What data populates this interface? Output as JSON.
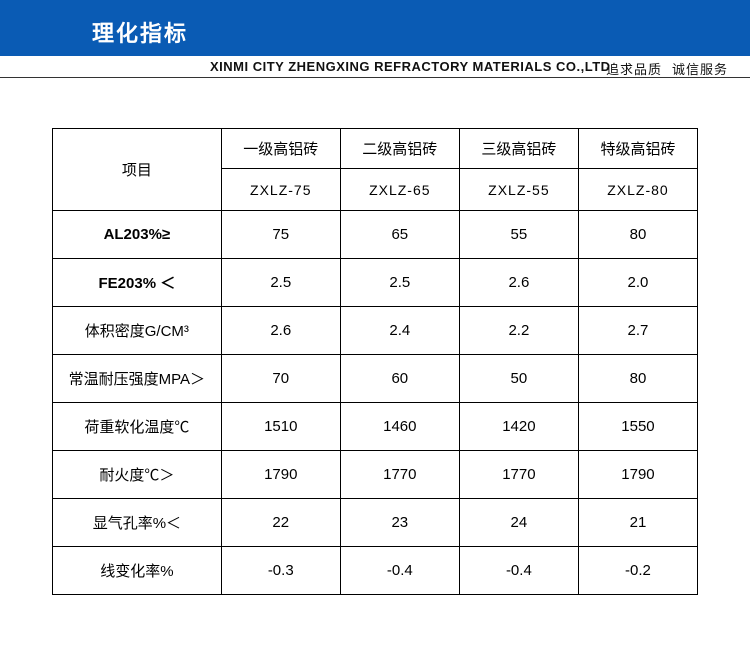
{
  "header": {
    "title": "理化指标",
    "company": "XINMI CITY ZHENGXING REFRACTORY MATERIALS CO.,LTD",
    "slogan1": "追求品质",
    "slogan2": "诚信服务"
  },
  "table": {
    "prop_header": "项目",
    "grades": [
      {
        "label": "一级高铝砖",
        "code": "ZXLZ-75"
      },
      {
        "label": "二级高铝砖",
        "code": "ZXLZ-65"
      },
      {
        "label": "三级高铝砖",
        "code": "ZXLZ-55"
      },
      {
        "label": "特级高铝砖",
        "code": "ZXLZ-80"
      }
    ],
    "rows": [
      {
        "prop": "AL203%≥",
        "bold": true,
        "values": [
          "75",
          "65",
          "55",
          "80"
        ]
      },
      {
        "prop": "FE203% ＜",
        "bold": true,
        "values": [
          "2.5",
          "2.5",
          "2.6",
          "2.0"
        ]
      },
      {
        "prop": "体积密度G/CM³",
        "bold": false,
        "values": [
          "2.6",
          "2.4",
          "2.2",
          "2.7"
        ]
      },
      {
        "prop": "常温耐压强度MPA＞",
        "bold": false,
        "values": [
          "70",
          "60",
          "50",
          "80"
        ]
      },
      {
        "prop": "荷重软化温度℃",
        "bold": false,
        "values": [
          "1510",
          "1460",
          "1420",
          "1550"
        ]
      },
      {
        "prop": "耐火度℃＞",
        "bold": false,
        "values": [
          "1790",
          "1770",
          "1770",
          "1790"
        ]
      },
      {
        "prop": "显气孔率%＜",
        "bold": false,
        "values": [
          "22",
          "23",
          "24",
          "21"
        ]
      },
      {
        "prop": "线变化率%",
        "bold": false,
        "values": [
          "-0.3",
          "-0.4",
          "-0.4",
          "-0.2"
        ]
      }
    ]
  },
  "colors": {
    "header_bg": "#0a5bb4",
    "text": "#000000",
    "border": "#000000"
  }
}
